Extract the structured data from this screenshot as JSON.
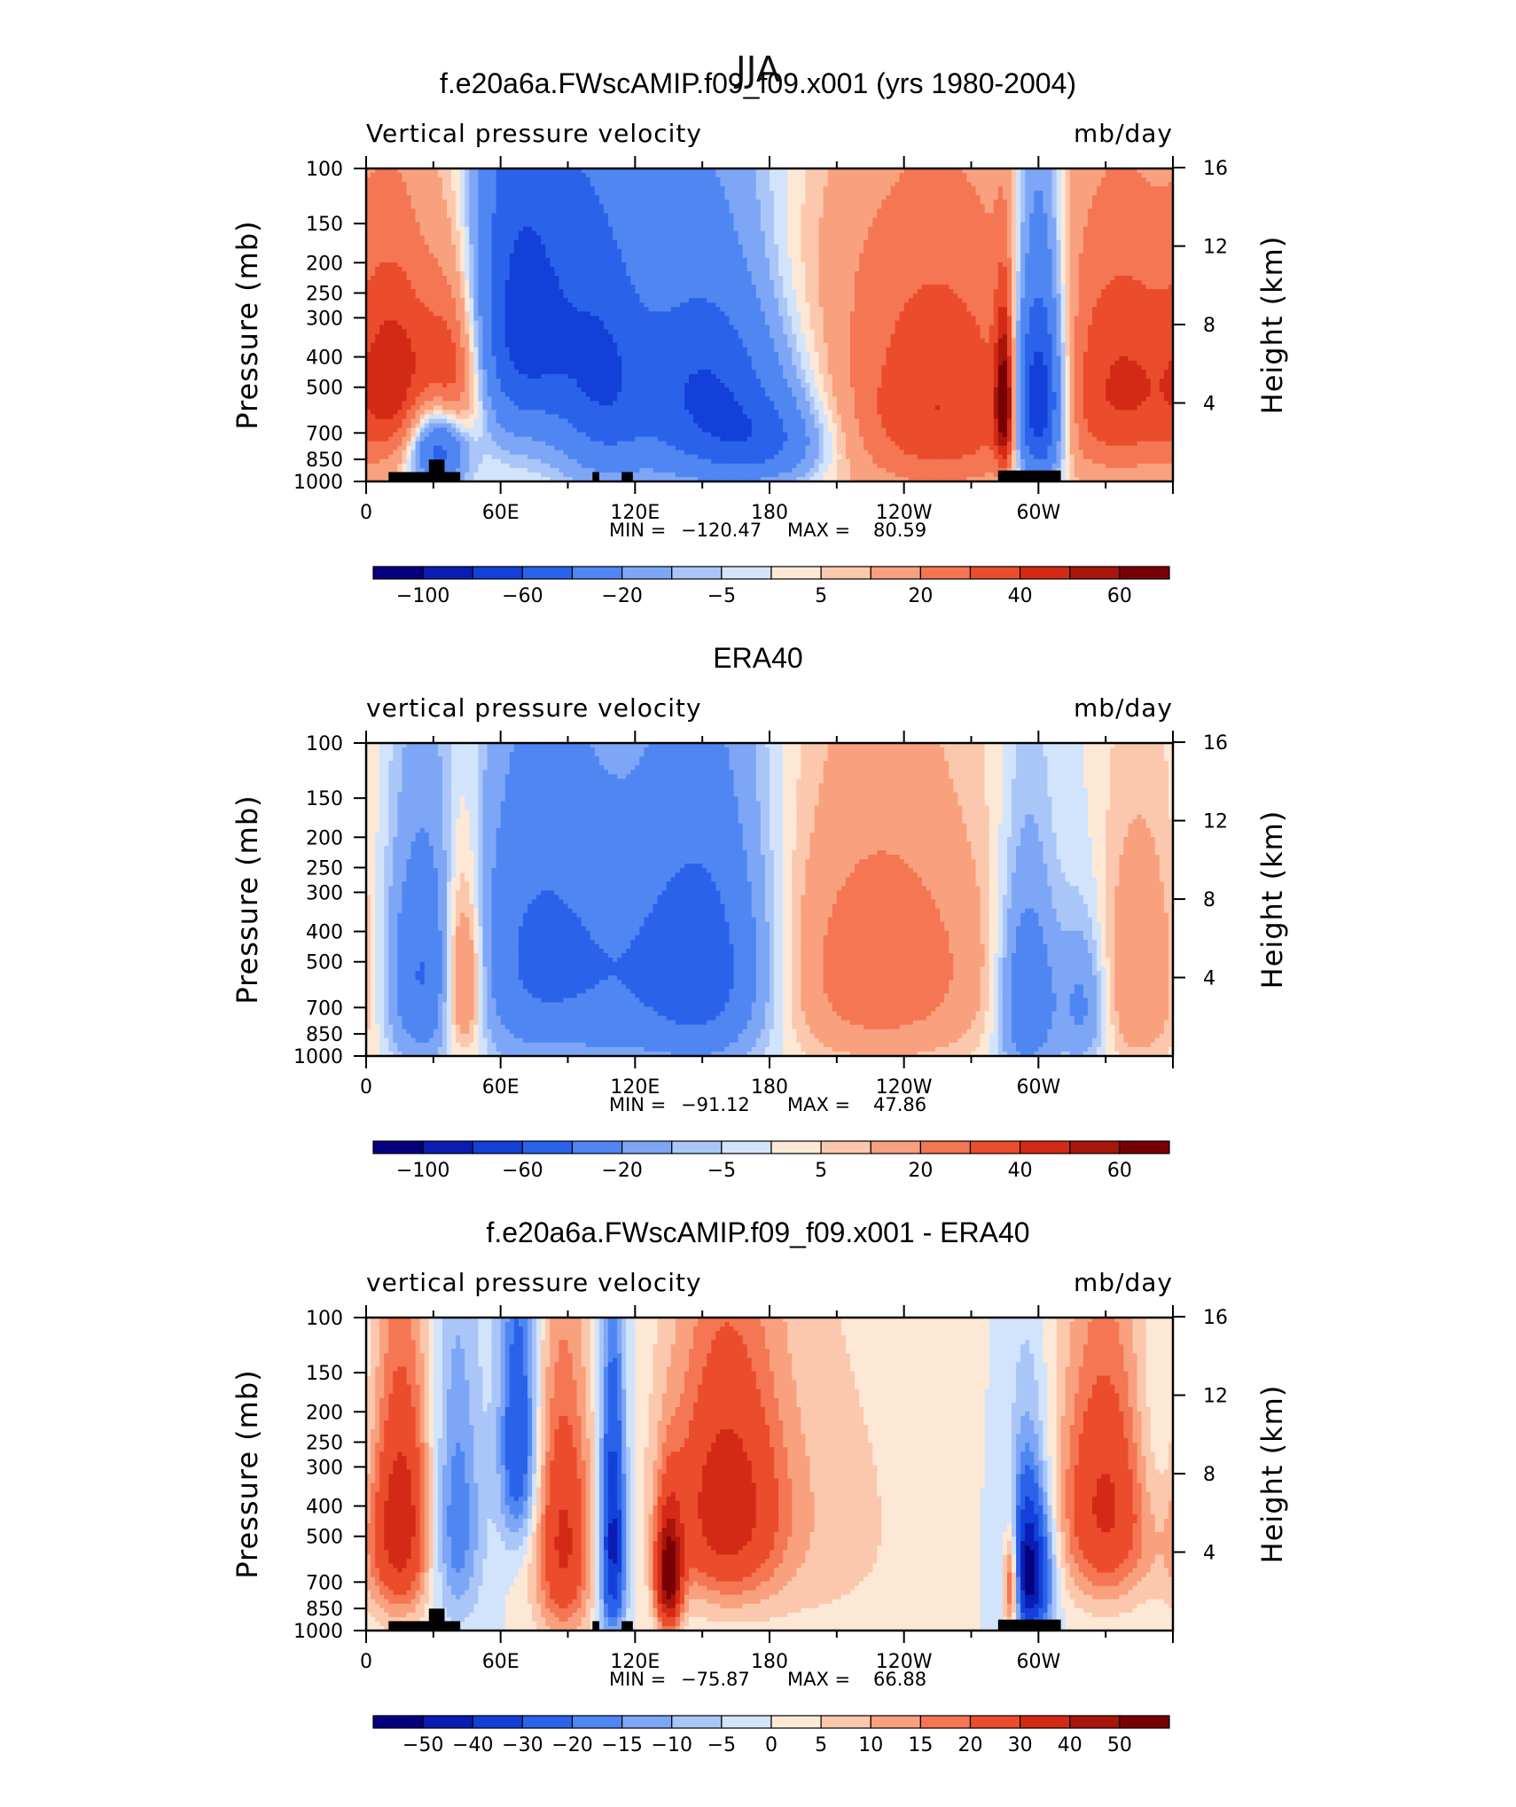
{
  "figure": {
    "title": "JJA"
  },
  "colors": {
    "palette": [
      "#06007f",
      "#0a1cb3",
      "#1240d8",
      "#2a63ea",
      "#4f86f2",
      "#7ea6f6",
      "#aac6f8",
      "#d2e4fb",
      "#fde8d6",
      "#fcc8ad",
      "#f9a07e",
      "#f47652",
      "#eb4c2c",
      "#d32a16",
      "#a8150b",
      "#780005"
    ]
  },
  "chart_data": [
    {
      "type": "heatmap",
      "title": "f.e20a6a.FWscAMIP.f09_f09.x001 (yrs 1980-2004)",
      "left_label": "Vertical pressure velocity",
      "units": "mb/day",
      "ylabel": "Pressure (mb)",
      "ylabel_right": "Height (km)",
      "x_ticks": [
        "0",
        "60E",
        "120E",
        "180",
        "120W",
        "60W"
      ],
      "y_ticks": [
        "100",
        "150",
        "200",
        "250",
        "300",
        "400",
        "500",
        "700",
        "850",
        "1000"
      ],
      "y_ticks_right": [
        "16",
        "12",
        "8",
        "4"
      ],
      "min_label": "MIN =",
      "min_value": "−120.47",
      "max_label": "MAX =",
      "max_value": "80.59",
      "colorbar_levels": [
        "−100",
        "−60",
        "−20",
        "−5",
        "5",
        "20",
        "40",
        "60"
      ],
      "fields": [
        {
          "lon": 15,
          "p": 480,
          "val": 35,
          "sx": 12,
          "sp": 280
        },
        {
          "lon": 40,
          "p": 450,
          "val": 45,
          "sx": 10,
          "sp": 220
        },
        {
          "lon": 32,
          "p": 780,
          "val": -60,
          "sx": 9,
          "sp": 160
        },
        {
          "lon": 70,
          "p": 300,
          "val": -70,
          "sx": 18,
          "sp": 260
        },
        {
          "lon": 105,
          "p": 450,
          "val": -45,
          "sx": 14,
          "sp": 330
        },
        {
          "lon": 150,
          "p": 500,
          "val": -60,
          "sx": 25,
          "sp": 300
        },
        {
          "lon": 180,
          "p": 750,
          "val": -35,
          "sx": 20,
          "sp": 170
        },
        {
          "lon": 255,
          "p": 580,
          "val": 40,
          "sx": 38,
          "sp": 360
        },
        {
          "lon": 300,
          "p": 550,
          "val": -100,
          "sx": 8,
          "sp": 300
        },
        {
          "lon": 285,
          "p": 560,
          "val": 60,
          "sx": 3,
          "sp": 220
        },
        {
          "lon": 340,
          "p": 500,
          "val": 38,
          "sx": 22,
          "sp": 320
        },
        {
          "lon": 215,
          "p": 180,
          "val": 6,
          "sx": 80,
          "sp": 120
        }
      ],
      "mountains": [
        {
          "lon0": 10,
          "lon1": 42,
          "h": 0.03
        },
        {
          "lon0": 28,
          "lon1": 35,
          "h": 0.07
        },
        {
          "lon0": 101,
          "lon1": 104,
          "h": 0.03
        },
        {
          "lon0": 114,
          "lon1": 119,
          "h": 0.03
        },
        {
          "lon0": 282,
          "lon1": 310,
          "h": 0.035
        }
      ]
    },
    {
      "type": "heatmap",
      "title": "ERA40",
      "left_label": "vertical pressure velocity",
      "units": "mb/day",
      "ylabel": "Pressure (mb)",
      "ylabel_right": "Height (km)",
      "x_ticks": [
        "0",
        "60E",
        "120E",
        "180",
        "120W",
        "60W"
      ],
      "y_ticks": [
        "100",
        "150",
        "200",
        "250",
        "300",
        "400",
        "500",
        "700",
        "850",
        "1000"
      ],
      "y_ticks_right": [
        "16",
        "12",
        "8",
        "4"
      ],
      "min_label": "MIN =",
      "min_value": "−91.12",
      "max_label": "MAX =",
      "max_value": "47.86",
      "colorbar_levels": [
        "−100",
        "−60",
        "−20",
        "−5",
        "5",
        "20",
        "40",
        "60"
      ],
      "fields": [
        {
          "lon": 25,
          "p": 550,
          "val": -40,
          "sx": 11,
          "sp": 300
        },
        {
          "lon": 43,
          "p": 560,
          "val": 42,
          "sx": 7,
          "sp": 260
        },
        {
          "lon": 78,
          "p": 480,
          "val": -45,
          "sx": 22,
          "sp": 330
        },
        {
          "lon": 148,
          "p": 520,
          "val": -58,
          "sx": 22,
          "sp": 330
        },
        {
          "lon": 230,
          "p": 520,
          "val": 30,
          "sx": 35,
          "sp": 330
        },
        {
          "lon": 295,
          "p": 650,
          "val": -40,
          "sx": 9,
          "sp": 320
        },
        {
          "lon": 320,
          "p": 680,
          "val": -25,
          "sx": 8,
          "sp": 250
        },
        {
          "lon": 345,
          "p": 560,
          "val": 20,
          "sx": 14,
          "sp": 330
        },
        {
          "lon": 110,
          "p": 600,
          "val": -12,
          "sx": 15,
          "sp": 350
        }
      ],
      "mountains": []
    },
    {
      "type": "heatmap",
      "title": "f.e20a6a.FWscAMIP.f09_f09.x001 - ERA40",
      "left_label": "vertical pressure velocity",
      "units": "mb/day",
      "ylabel": "Pressure (mb)",
      "ylabel_right": "Height (km)",
      "x_ticks": [
        "0",
        "60E",
        "120E",
        "180",
        "120W",
        "60W"
      ],
      "y_ticks": [
        "100",
        "150",
        "200",
        "250",
        "300",
        "400",
        "500",
        "700",
        "850",
        "1000"
      ],
      "y_ticks_right": [
        "16",
        "12",
        "8",
        "4"
      ],
      "min_label": "MIN =",
      "min_value": "−75.87",
      "max_label": "MAX =",
      "max_value": "66.88",
      "colorbar_levels": [
        "−50",
        "−40",
        "−30",
        "−20",
        "−15",
        "−10",
        "−5",
        "0",
        "5",
        "10",
        "15",
        "20",
        "30",
        "40",
        "50"
      ],
      "fields": [
        {
          "lon": 15,
          "p": 450,
          "val": 38,
          "sx": 10,
          "sp": 280
        },
        {
          "lon": 40,
          "p": 450,
          "val": -20,
          "sx": 8,
          "sp": 300
        },
        {
          "lon": 68,
          "p": 250,
          "val": -30,
          "sx": 6,
          "sp": 180
        },
        {
          "lon": 88,
          "p": 520,
          "val": 32,
          "sx": 9,
          "sp": 330
        },
        {
          "lon": 110,
          "p": 520,
          "val": -45,
          "sx": 4,
          "sp": 320
        },
        {
          "lon": 135,
          "p": 680,
          "val": 55,
          "sx": 4,
          "sp": 200
        },
        {
          "lon": 160,
          "p": 400,
          "val": 35,
          "sx": 18,
          "sp": 260
        },
        {
          "lon": 295,
          "p": 650,
          "val": -60,
          "sx": 7,
          "sp": 250
        },
        {
          "lon": 288,
          "p": 700,
          "val": 50,
          "sx": 3,
          "sp": 200
        },
        {
          "lon": 330,
          "p": 400,
          "val": 32,
          "sx": 15,
          "sp": 260
        },
        {
          "lon": 205,
          "p": 450,
          "val": 7,
          "sx": 30,
          "sp": 400
        },
        {
          "lon": 355,
          "p": 250,
          "val": -8,
          "sx": 10,
          "sp": 160
        }
      ],
      "mountains": [
        {
          "lon0": 10,
          "lon1": 42,
          "h": 0.03
        },
        {
          "lon0": 28,
          "lon1": 35,
          "h": 0.07
        },
        {
          "lon0": 101,
          "lon1": 104,
          "h": 0.03
        },
        {
          "lon0": 114,
          "lon1": 119,
          "h": 0.03
        },
        {
          "lon0": 282,
          "lon1": 310,
          "h": 0.035
        }
      ]
    }
  ]
}
